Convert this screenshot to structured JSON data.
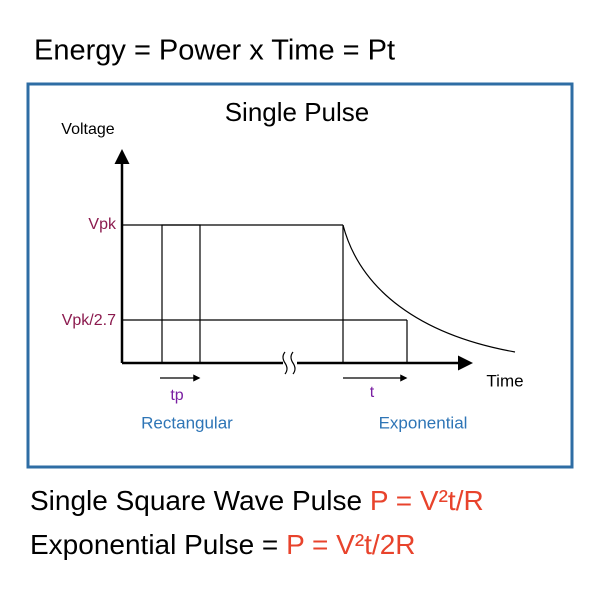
{
  "header": {
    "title": "Energy = Power x Time = Pt"
  },
  "diagram": {
    "title": "Single Pulse",
    "y_axis_label": "Voltage",
    "x_axis_label": "Time",
    "levels": [
      "Vpk",
      "Vpk/2.7"
    ],
    "pulses": [
      {
        "width_label": "tp",
        "name": "Rectangular"
      },
      {
        "width_label": "t",
        "name": "Exponential"
      }
    ]
  },
  "formulas": [
    {
      "text": "Single Square Wave Pulse ",
      "formula": "P = V²t/R"
    },
    {
      "text": "Exponential Pulse = ",
      "formula": "P = V²t/2R"
    }
  ]
}
